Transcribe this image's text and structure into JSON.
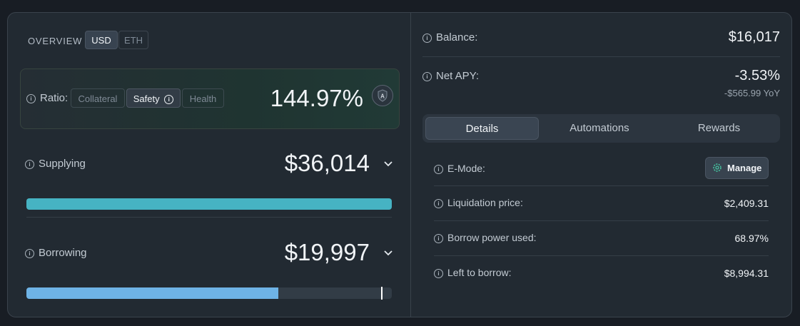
{
  "overview": {
    "label": "OVERVIEW",
    "tabs": [
      "USD",
      "ETH"
    ],
    "active_tab": "USD"
  },
  "ratio": {
    "label": "Ratio:",
    "options": [
      "Collateral",
      "Safety",
      "Health"
    ],
    "active": "Safety",
    "value": "144.97%",
    "badge_letter": "A"
  },
  "supplying": {
    "label": "Supplying",
    "value": "$36,014",
    "fill_fraction": 1.0,
    "color": "#46b3c3"
  },
  "borrowing": {
    "label": "Borrowing",
    "value": "$19,997",
    "fill_fraction": 0.6897,
    "limit_fraction": 0.97,
    "color": "#6eb3e6"
  },
  "balance": {
    "label": "Balance:",
    "value": "$16,017"
  },
  "net_apy": {
    "label": "Net APY:",
    "value": "-3.53%",
    "sub": "-$565.99 YoY"
  },
  "detail_tabs": {
    "items": [
      "Details",
      "Automations",
      "Rewards"
    ],
    "active": "Details"
  },
  "details": {
    "emode_label": "E-Mode:",
    "manage_label": "Manage",
    "rows": [
      {
        "label": "Liquidation price:",
        "value": "$2,409.31"
      },
      {
        "label": "Borrow power used:",
        "value": "68.97%"
      },
      {
        "label": "Left to borrow:",
        "value": "$8,994.31"
      }
    ]
  },
  "colors": {
    "accent_teal": "#46b3c3",
    "accent_blue": "#6eb3e6"
  }
}
